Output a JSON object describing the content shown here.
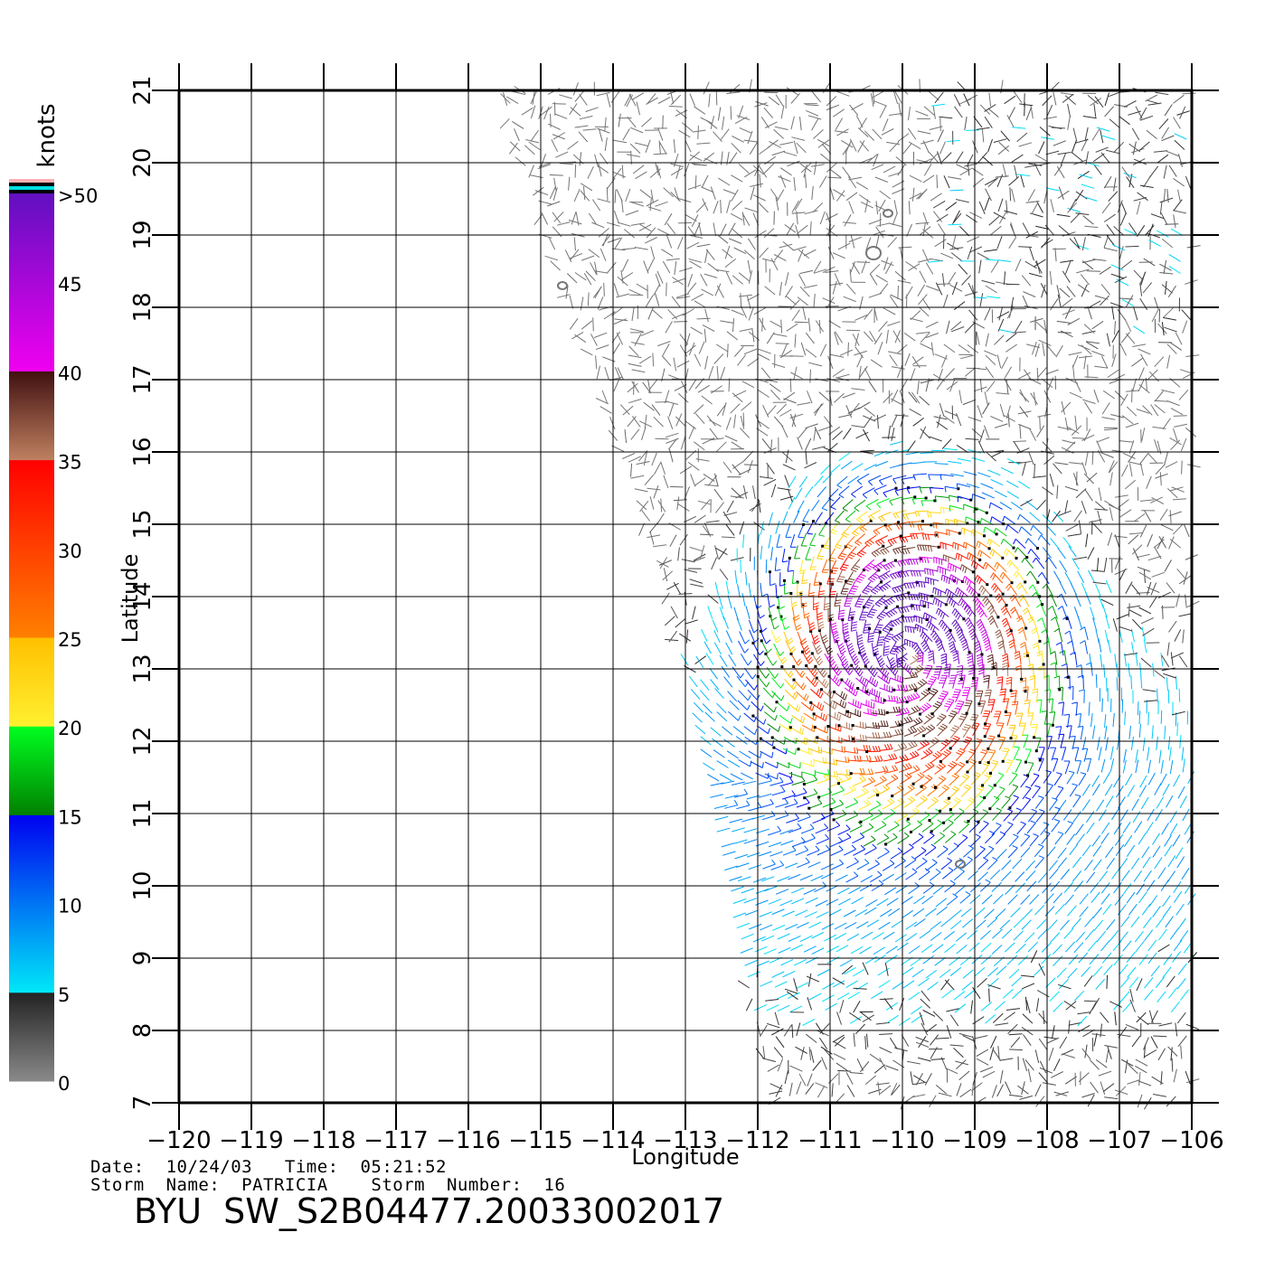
{
  "chart_data": {
    "type": "vector-field",
    "xlabel": "Longitude",
    "ylabel": "Latitude",
    "xlim": [
      -120,
      -106
    ],
    "ylim": [
      7,
      21
    ],
    "x_ticks": [
      "−120",
      "−119",
      "−118",
      "−117",
      "−116",
      "−115",
      "−114",
      "−113",
      "−112",
      "−111",
      "−110",
      "−109",
      "−108",
      "−107",
      "−106"
    ],
    "y_ticks": [
      "7",
      "8",
      "9",
      "10",
      "11",
      "12",
      "13",
      "14",
      "15",
      "16",
      "17",
      "18",
      "19",
      "20",
      "21"
    ],
    "grid": true,
    "colorbar": {
      "unit_label": "knots",
      "tick_labels": [
        "0",
        "5",
        "10",
        "15",
        "20",
        "25",
        "30",
        "35",
        "40",
        "45",
        ">50"
      ],
      "bands": [
        {
          "from": 0,
          "to": 5,
          "colors": [
            "#8a8a8a",
            "#222222"
          ]
        },
        {
          "from": 5,
          "to": 15,
          "colors": [
            "#00e8f8",
            "#0000f0"
          ]
        },
        {
          "from": 15,
          "to": 20,
          "colors": [
            "#008000",
            "#00ff20"
          ]
        },
        {
          "from": 20,
          "to": 25,
          "colors": [
            "#fff030",
            "#ffc000"
          ]
        },
        {
          "from": 25,
          "to": 35,
          "colors": [
            "#ff8000",
            "#ff0000"
          ]
        },
        {
          "from": 35,
          "to": 40,
          "colors": [
            "#c08060",
            "#401010"
          ]
        },
        {
          "from": 40,
          "to": 50,
          "colors": [
            "#f000f0",
            "#6010c0"
          ]
        }
      ],
      "top_caps": [
        "#ffb0b0",
        "#000000",
        "#00e0e0",
        "#000000"
      ]
    },
    "storm_center": {
      "lon": -109.9,
      "lat": 13.1
    },
    "peak_speed_kt": 46,
    "swath_west_edge": [
      [
        -115.6,
        21.1
      ],
      [
        -114.2,
        17.0
      ],
      [
        -113.2,
        14.0
      ],
      [
        -112.4,
        10.0
      ],
      [
        -111.8,
        7.0
      ]
    ],
    "land_contours": [
      [
        -110.2,
        19.3
      ],
      [
        -110.4,
        18.75
      ],
      [
        -114.7,
        18.3
      ],
      [
        -109.2,
        10.3
      ]
    ]
  },
  "footer": {
    "date_line": "Date:  10/24/03   Time:  05:21:52",
    "storm_line": "Storm  Name:  PATRICIA    Storm  Number:  16",
    "file_id": "BYU  SW_S2B04477.20033002017"
  }
}
